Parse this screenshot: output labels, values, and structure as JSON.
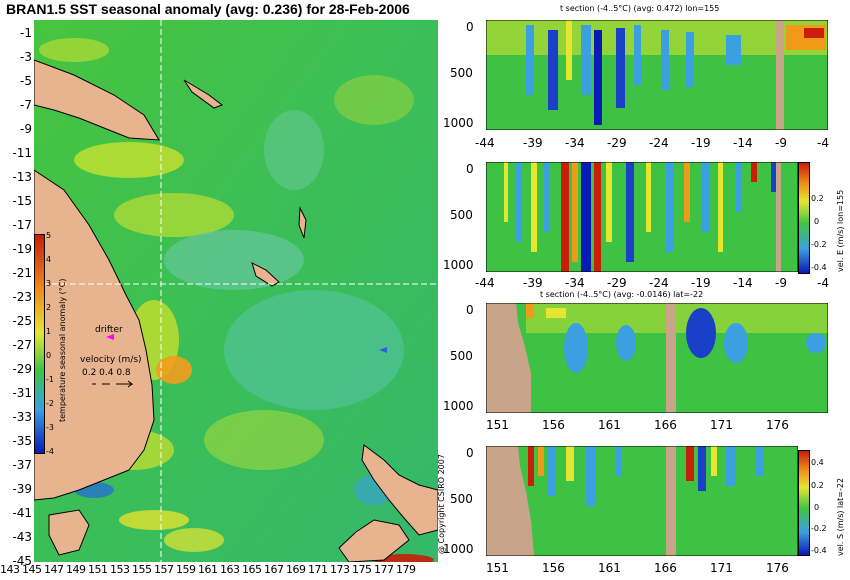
{
  "title": "BRAN1.5 SST seasonal anomaly (avg: 0.236) for 28-Feb-2006",
  "copyright": "@ Copyright CSIRO 2007",
  "colors": {
    "land": "#e8b48f",
    "ocean_base": "#3ec244",
    "deep_blue": "#0a1ab4",
    "cool_blue": "#38a6e8",
    "cyan": "#5fd0b8",
    "yellow": "#e6e632",
    "orange": "#f09a1a",
    "red": "#c81e0a",
    "section_land": "#c8a488",
    "crosshair": "#ffffff",
    "drifter": "#ff00ff"
  },
  "map": {
    "lat_labels": [
      "-1",
      "-3",
      "-5",
      "-7",
      "-9",
      "-11",
      "-13",
      "-15",
      "-17",
      "-19",
      "-21",
      "-23",
      "-25",
      "-27",
      "-29",
      "-31",
      "-33",
      "-35",
      "-37",
      "-39",
      "-41",
      "-43",
      "-45"
    ],
    "lon_labels": [
      "143",
      "145",
      "147",
      "149",
      "151",
      "153",
      "155",
      "157",
      "159",
      "161",
      "163",
      "165",
      "167",
      "169",
      "171",
      "173",
      "175",
      "177",
      "179"
    ],
    "crosshair": {
      "lon": 155,
      "lat": -22
    },
    "colorbar": {
      "label": "temperature seasonal anomaly (°C)",
      "ticks": [
        "5",
        "4",
        "3",
        "2",
        "1",
        "0",
        "-1",
        "-2",
        "-3",
        "-4"
      ]
    },
    "drifter_label": "drifter",
    "velocity_legend": {
      "title": "velocity (m/s)",
      "values": "0.2 0.4 0.8"
    }
  },
  "panels": {
    "p1": {
      "title": "t section (-4..5°C) (avg: 0.472) lon=155",
      "x_ticks": [
        "-44",
        "-39",
        "-34",
        "-29",
        "-24",
        "-19",
        "-14",
        "-9",
        "-4"
      ],
      "y_ticks": [
        "0",
        "500",
        "1000"
      ]
    },
    "p2": {
      "x_ticks": [
        "-44",
        "-39",
        "-34",
        "-29",
        "-24",
        "-19",
        "-14",
        "-9",
        "-4"
      ],
      "y_ticks": [
        "0",
        "500",
        "1000"
      ],
      "side_label": "vel. E (m/s) lon=155",
      "cbar_ticks": [
        "0.2",
        "0",
        "-0.2",
        "-0.4"
      ]
    },
    "p3": {
      "title": "t section (-4..5°C) (avg: -0.0146) lat=-22",
      "x_ticks": [
        "151",
        "156",
        "161",
        "166",
        "171",
        "176"
      ],
      "y_ticks": [
        "0",
        "500",
        "1000"
      ]
    },
    "p4": {
      "x_ticks": [
        "151",
        "156",
        "161",
        "166",
        "171",
        "176"
      ],
      "y_ticks": [
        "0",
        "500",
        "1000"
      ],
      "side_label": "vel. S (m/s) lat=-22",
      "cbar_ticks": [
        "0.4",
        "0.2",
        "0",
        "-0.2",
        "-0.4"
      ]
    }
  }
}
